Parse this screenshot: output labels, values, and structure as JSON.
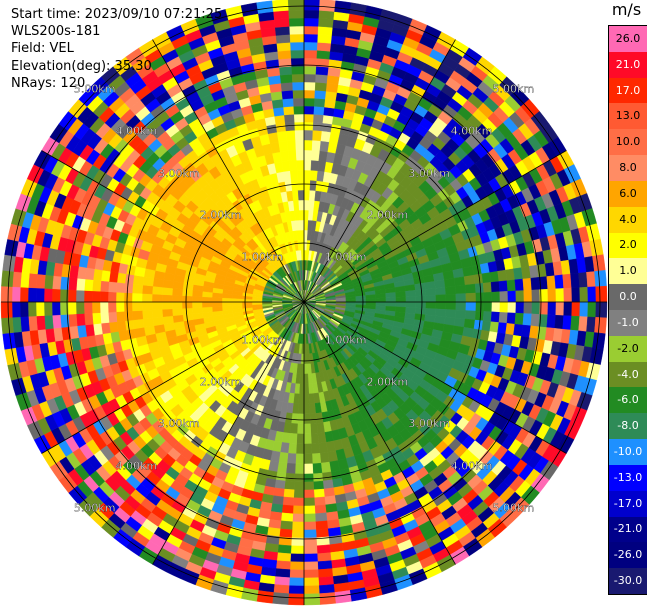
{
  "header": {
    "start_time": "Start time: 2023/09/10 07:21:25",
    "instrument": "WLS200s-181",
    "field": "Field: VEL",
    "elevation": "Elevation(deg): 35.30",
    "nrays": "NRays: 120"
  },
  "colorbar": {
    "unit": "m/s",
    "levels": [
      {
        "label": "26.0",
        "color": "#ff69b4"
      },
      {
        "label": "21.0",
        "color": "#ff0a28"
      },
      {
        "label": "17.0",
        "color": "#ff2800"
      },
      {
        "label": "13.0",
        "color": "#ff5a32"
      },
      {
        "label": "10.0",
        "color": "#ff6e46"
      },
      {
        "label": "8.0",
        "color": "#ff8c64"
      },
      {
        "label": "6.0",
        "color": "#ffa500"
      },
      {
        "label": "4.0",
        "color": "#ffd700"
      },
      {
        "label": "2.0",
        "color": "#ffff00"
      },
      {
        "label": "1.0",
        "color": "#ffff96"
      },
      {
        "label": "0.0",
        "color": "#696969"
      },
      {
        "label": "-1.0",
        "color": "#808080"
      },
      {
        "label": "-2.0",
        "color": "#9acd32"
      },
      {
        "label": "-4.0",
        "color": "#6b8e23"
      },
      {
        "label": "-6.0",
        "color": "#228b22"
      },
      {
        "label": "-8.0",
        "color": "#2e8b57"
      },
      {
        "label": "-10.0",
        "color": "#1e90ff"
      },
      {
        "label": "-13.0",
        "color": "#0000ff"
      },
      {
        "label": "-17.0",
        "color": "#0000cd"
      },
      {
        "label": "-21.0",
        "color": "#00008b"
      },
      {
        "label": "-26.0",
        "color": "#000080"
      },
      {
        "label": "-30.0",
        "color": "#191970"
      }
    ]
  },
  "range_labels": [
    "1.00km",
    "2.00km",
    "3.00km",
    "4.00km",
    "5.00km"
  ]
}
